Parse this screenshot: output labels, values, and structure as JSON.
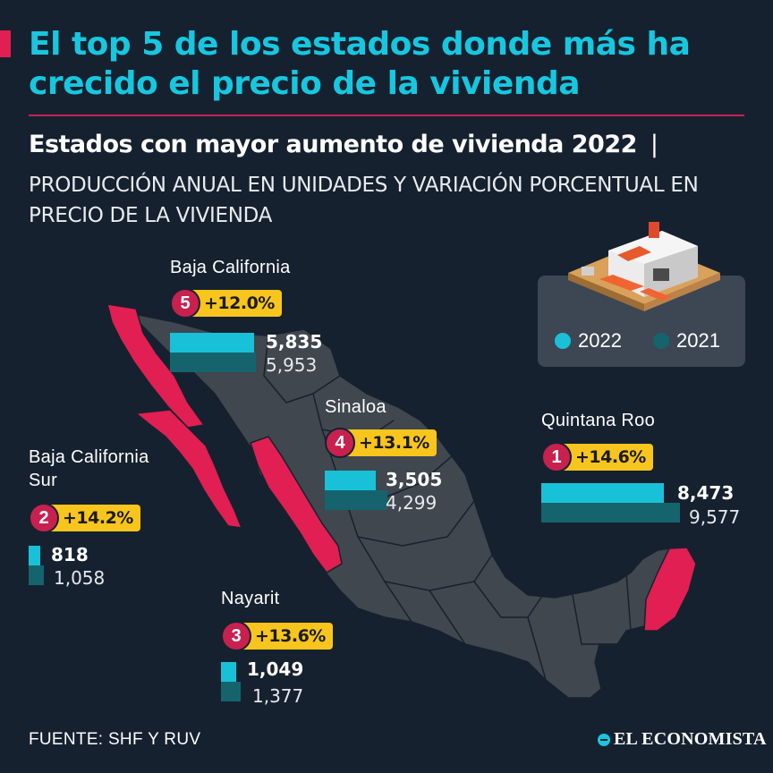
{
  "header": {
    "title": "El top 5 de los estados donde más ha crecido el precio de la vivienda",
    "subtitle": "Estados con mayor aumento de vivienda 2022",
    "subtitle_sep": "|",
    "description": "PRODUCCIÓN ANUAL EN UNIDADES Y VARIACIÓN PORCENTUAL EN PRECIO DE LA VIVIENDA"
  },
  "legend": {
    "label_2022": "2022",
    "label_2021": "2021"
  },
  "colors": {
    "bar_2022": "#19c1d8",
    "bar_2021": "#15646d",
    "badge": "#f7c51d",
    "rank": "#c8214f",
    "highlight_state": "#e11f52",
    "map_fill": "#40474f",
    "background": "#16212f"
  },
  "icons": [
    "house-illustration",
    "mexico-map",
    "economista-logo-icon"
  ],
  "footer": {
    "source": "FUENTE: SHF Y RUV",
    "brand": "EL ECONOMISTA"
  },
  "chart_data": {
    "type": "bar",
    "title": "Estados con mayor aumento de vivienda 2022",
    "categories": [
      "Quintana Roo",
      "Baja California Sur",
      "Nayarit",
      "Sinaloa",
      "Baja California"
    ],
    "series": [
      {
        "name": "2022",
        "values": [
          8473,
          818,
          1049,
          3505,
          5835
        ]
      },
      {
        "name": "2021",
        "values": [
          9577,
          1058,
          1377,
          4299,
          5953
        ]
      }
    ],
    "states": [
      {
        "rank": "1",
        "name": "Quintana Roo",
        "pct": "+14.6%",
        "v2022": "8,473",
        "v2021": "9,577"
      },
      {
        "rank": "2",
        "name_line1": "Baja California",
        "name_line2": "Sur",
        "pct": "+14.2%",
        "v2022": "818",
        "v2021": "1,058"
      },
      {
        "rank": "3",
        "name": "Nayarit",
        "pct": "+13.6%",
        "v2022": "1,049",
        "v2021": "1,377"
      },
      {
        "rank": "4",
        "name": "Sinaloa",
        "pct": "+13.1%",
        "v2022": "3,505",
        "v2021": "4,299"
      },
      {
        "rank": "5",
        "name": "Baja California",
        "pct": "+12.0%",
        "v2022": "5,835",
        "v2021": "5,953"
      }
    ],
    "legend_position": "top-right"
  }
}
